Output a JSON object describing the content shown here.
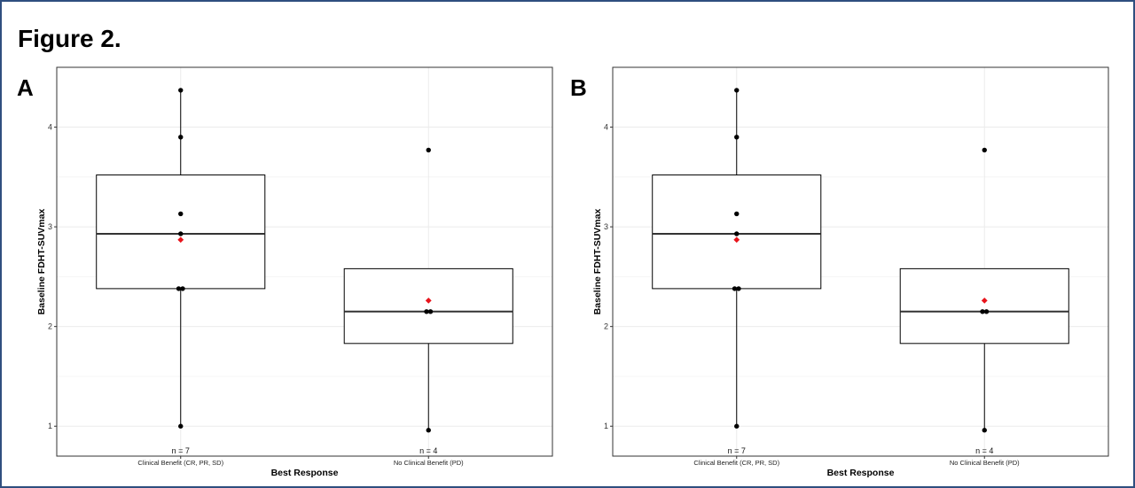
{
  "figure": {
    "title": "Figure 2.",
    "panel_labels": [
      "A",
      "B"
    ]
  },
  "chart_data": [
    {
      "type": "box",
      "panel": "A",
      "xlabel": "Best Response",
      "ylabel": "Baseline FDHT-SUVmax",
      "ylim": [
        0.7,
        4.6
      ],
      "yticks": [
        1,
        2,
        3,
        4
      ],
      "grid": true,
      "categories": [
        "Clinical Benefit (CR, PR, SD)",
        "No Clinical Benefit (PD)"
      ],
      "groups": [
        {
          "category": "Clinical Benefit (CR, PR, SD)",
          "n_label": "n = 7",
          "min": 1.0,
          "q1": 2.38,
          "median": 2.93,
          "q3": 3.52,
          "max": 4.37,
          "mean": 2.87,
          "points": [
            4.37,
            3.9,
            3.13,
            2.93,
            2.38,
            2.38,
            1.0
          ]
        },
        {
          "category": "No Clinical Benefit (PD)",
          "n_label": "n = 4",
          "min": 0.96,
          "q1": 1.83,
          "median": 2.15,
          "q3": 2.58,
          "max": 2.58,
          "mean": 2.26,
          "points": [
            3.77,
            2.15,
            2.15,
            0.96
          ]
        }
      ],
      "colors": {
        "points": "#000000",
        "mean": "#e8141c",
        "grid": "#ebebeb"
      }
    },
    {
      "type": "box",
      "panel": "B",
      "xlabel": "Best Response",
      "ylabel": "Baseline FDHT-SUVmax",
      "ylim": [
        0.7,
        4.6
      ],
      "yticks": [
        1,
        2,
        3,
        4
      ],
      "grid": true,
      "categories": [
        "Clinical Benefit (CR, PR, SD)",
        "No Clinical Benefit (PD)"
      ],
      "groups": [
        {
          "category": "Clinical Benefit (CR, PR, SD)",
          "n_label": "n = 7",
          "min": 1.0,
          "q1": 2.38,
          "median": 2.93,
          "q3": 3.52,
          "max": 4.37,
          "mean": 2.87,
          "points": [
            4.37,
            3.9,
            3.13,
            2.93,
            2.38,
            2.38,
            1.0
          ]
        },
        {
          "category": "No Clinical Benefit (PD)",
          "n_label": "n = 4",
          "min": 0.96,
          "q1": 1.83,
          "median": 2.15,
          "q3": 2.58,
          "max": 2.58,
          "mean": 2.26,
          "points": [
            3.77,
            2.15,
            2.15,
            0.96
          ]
        }
      ],
      "colors": {
        "points": "#000000",
        "mean": "#e8141c",
        "grid": "#ebebeb"
      }
    }
  ]
}
